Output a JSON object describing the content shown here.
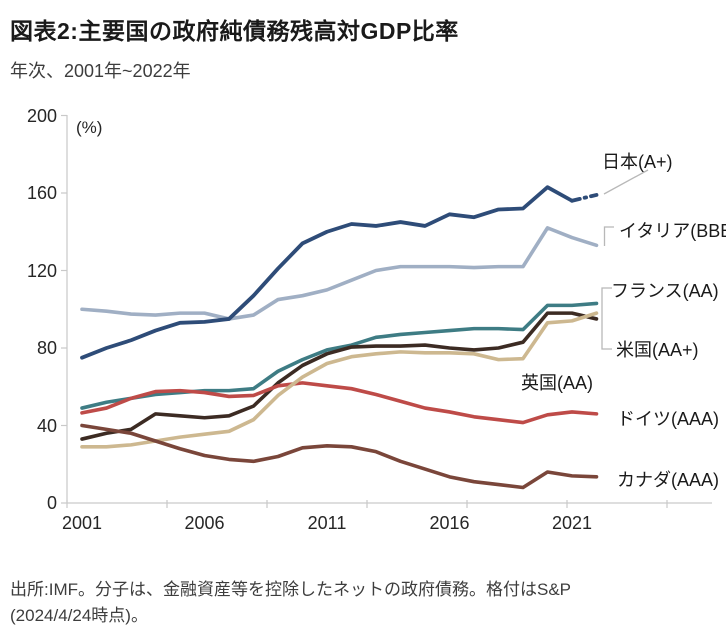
{
  "header": {
    "title": "図表2:主要国の政府純債務残高対GDP比率",
    "subtitle": "年次、2001年~2022年"
  },
  "footer": {
    "line1": "出所:IMF。分子は、金融資産等を控除したネットの政府債務。格付はS&P",
    "line2": "(2024/4/24時点)。"
  },
  "chart_data": {
    "type": "line",
    "title": "主要国の政府純債務残高対GDP比率",
    "unit_label": "(%)",
    "ylabel": "%",
    "ylim": [
      0,
      200
    ],
    "y_ticks": [
      200,
      160,
      120,
      80,
      40,
      0
    ],
    "x": [
      2001,
      2002,
      2003,
      2004,
      2005,
      2006,
      2007,
      2008,
      2009,
      2010,
      2011,
      2012,
      2013,
      2014,
      2015,
      2016,
      2017,
      2018,
      2019,
      2020,
      2021,
      2022
    ],
    "x_tick_labels": [
      "2001",
      "2006",
      "2011",
      "2016",
      "2021"
    ],
    "x_tick_years": [
      2001,
      2006,
      2011,
      2016,
      2021
    ],
    "grid": "off",
    "legend_position": "right-of-line-labels",
    "axis_color": "#c9c9c9",
    "leader_color": "#b8b8b8",
    "series": [
      {
        "id": "italy",
        "label": "イタリア(BBB)",
        "country": "イタリア",
        "rating": "BBB",
        "color": "#A0AFC4",
        "values": [
          100,
          99,
          97.5,
          97,
          98,
          98,
          95,
          97,
          105,
          107,
          110,
          115,
          120,
          122,
          122,
          122,
          121.5,
          122,
          122,
          142,
          137,
          133
        ]
      },
      {
        "id": "france",
        "label": "フランス(AA)",
        "country": "フランス",
        "rating": "AA",
        "color": "#3E7C84",
        "values": [
          49,
          52,
          54,
          56,
          57,
          58,
          58,
          59,
          68,
          74,
          79,
          81.5,
          85.5,
          87,
          88,
          89,
          90,
          90,
          89.5,
          102,
          102,
          103
        ]
      },
      {
        "id": "us",
        "label": "米国(AA+)",
        "country": "米国",
        "rating": "AA+",
        "color": "#3C2B23",
        "values": [
          33,
          36,
          38,
          46,
          45,
          44,
          45,
          50,
          62,
          71,
          77,
          80.5,
          81,
          81,
          81.5,
          80,
          79,
          80,
          83,
          98,
          98,
          95
        ]
      },
      {
        "id": "germany",
        "label": "ドイツ(AAA)",
        "country": "ドイツ",
        "rating": "AAA",
        "color": "#BE4B48",
        "values": [
          46.5,
          49,
          54,
          57.5,
          58,
          57,
          55,
          55.5,
          60.5,
          62,
          60.5,
          59,
          56,
          52.5,
          49,
          47,
          44.5,
          43,
          41.5,
          45.5,
          47,
          46
        ]
      },
      {
        "id": "uk",
        "label": "英国(AA)",
        "country": "英国",
        "rating": "AA",
        "color": "#CDB890",
        "values": [
          29,
          29,
          30,
          32,
          34,
          35.5,
          37,
          43,
          55.5,
          65,
          72,
          75.5,
          77,
          78,
          77.5,
          77.5,
          77,
          74,
          74.5,
          93,
          94,
          98
        ]
      },
      {
        "id": "canada",
        "label": "カナダ(AAA)",
        "country": "カナダ",
        "rating": "AAA",
        "color": "#7A463A",
        "values": [
          40,
          38,
          36,
          32,
          28,
          24.5,
          22.5,
          21.5,
          24,
          28.5,
          29.5,
          29,
          26.5,
          21.5,
          17.5,
          13.5,
          11,
          9.5,
          8,
          16,
          14,
          13.5
        ]
      },
      {
        "id": "japan",
        "label": "日本(A+)",
        "country": "日本",
        "rating": "A+",
        "color": "#2E4C78",
        "dashed_tail_from_index": 20,
        "values": [
          75,
          80,
          84,
          89,
          93,
          93.5,
          95,
          107,
          121,
          134,
          140,
          144,
          143,
          145,
          143,
          149,
          147.5,
          151.5,
          152,
          163,
          156,
          159
        ]
      }
    ]
  }
}
